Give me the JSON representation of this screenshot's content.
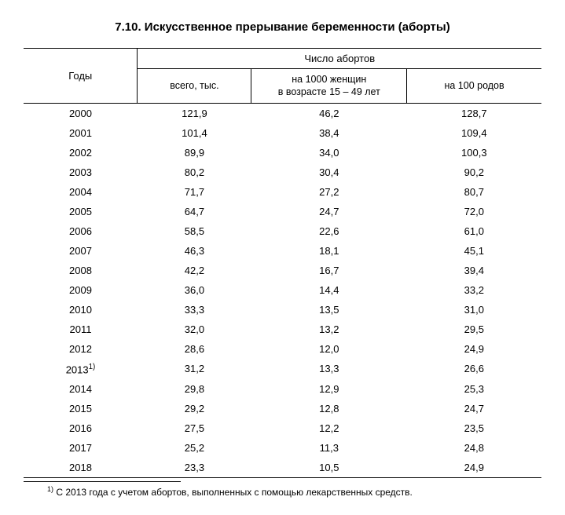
{
  "title": "7.10. Искусственное прерывание беременности (аборты)",
  "header": {
    "years": "Годы",
    "group": "Число абортов",
    "col1": "всего, тыс.",
    "col2_line1": "на 1000 женщин",
    "col2_line2": "в возрасте 15 – 49 лет",
    "col3": "на 100 родов"
  },
  "rows": [
    {
      "year": "2000",
      "c1": "121,9",
      "c2": "46,2",
      "c3": "128,7"
    },
    {
      "year": "2001",
      "c1": "101,4",
      "c2": "38,4",
      "c3": "109,4"
    },
    {
      "year": "2002",
      "c1": "89,9",
      "c2": "34,0",
      "c3": "100,3"
    },
    {
      "year": "2003",
      "c1": "80,2",
      "c2": "30,4",
      "c3": "90,2"
    },
    {
      "year": "2004",
      "c1": "71,7",
      "c2": "27,2",
      "c3": "80,7"
    },
    {
      "year": "2005",
      "c1": "64,7",
      "c2": "24,7",
      "c3": "72,0"
    },
    {
      "year": "2006",
      "c1": "58,5",
      "c2": "22,6",
      "c3": "61,0"
    },
    {
      "year": "2007",
      "c1": "46,3",
      "c2": "18,1",
      "c3": "45,1"
    },
    {
      "year": "2008",
      "c1": "42,2",
      "c2": "16,7",
      "c3": "39,4"
    },
    {
      "year": "2009",
      "c1": "36,0",
      "c2": "14,4",
      "c3": "33,2"
    },
    {
      "year": "2010",
      "c1": "33,3",
      "c2": "13,5",
      "c3": "31,0"
    },
    {
      "year": "2011",
      "c1": "32,0",
      "c2": "13,2",
      "c3": "29,5"
    },
    {
      "year": "2012",
      "c1": "28,6",
      "c2": "12,0",
      "c3": "24,9"
    },
    {
      "year_sup": "1)",
      "year": "2013",
      "c1": "31,2",
      "c2": "13,3",
      "c3": "26,6"
    },
    {
      "year": "2014",
      "c1": "29,8",
      "c2": "12,9",
      "c3": "25,3"
    },
    {
      "year": "2015",
      "c1": "29,2",
      "c2": "12,8",
      "c3": "24,7"
    },
    {
      "year": "2016",
      "c1": "27,5",
      "c2": "12,2",
      "c3": "23,5"
    },
    {
      "year": "2017",
      "c1": "25,2",
      "c2": "11,3",
      "c3": "24,8"
    },
    {
      "year": "2018",
      "c1": "23,3",
      "c2": "10,5",
      "c3": "24,9"
    }
  ],
  "footnote": {
    "marker": "1)",
    "text": " С 2013 года с учетом абортов, выполненных с помощью лекарственных средств."
  }
}
